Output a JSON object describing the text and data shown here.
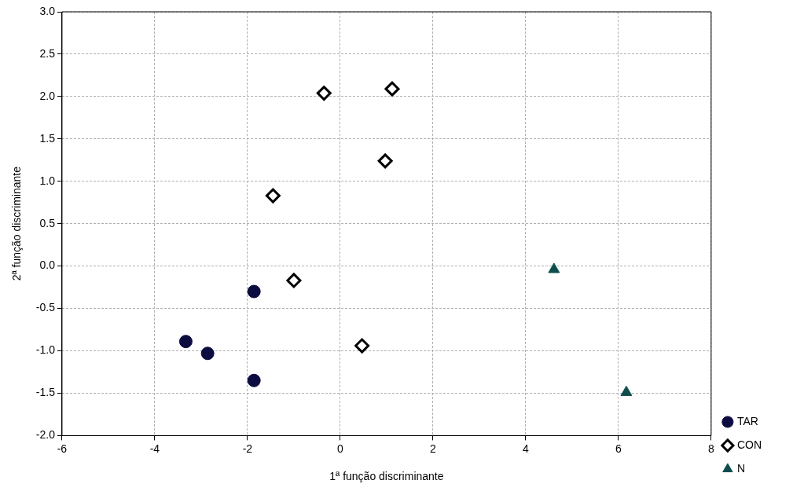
{
  "chart_data": {
    "type": "scatter",
    "xlabel": "1ª função discriminante",
    "ylabel": "2ª função discriminante",
    "xlim": [
      -6,
      8
    ],
    "xticks": [
      -6,
      -4,
      -2,
      0,
      2,
      4,
      6,
      8
    ],
    "ylim": [
      -2,
      3
    ],
    "yticks": [
      {
        "value": -2,
        "label": "-2.0"
      },
      {
        "value": -1.5,
        "label": "-1.5"
      },
      {
        "value": -1,
        "label": "-1.0"
      },
      {
        "value": -0.5,
        "label": "-0.5"
      },
      {
        "value": 0,
        "label": "0.0"
      },
      {
        "value": 0.5,
        "label": "0.5"
      },
      {
        "value": 1,
        "label": "1.0"
      },
      {
        "value": 1.5,
        "label": "1.5"
      },
      {
        "value": 2,
        "label": "2.0"
      },
      {
        "value": 2.5,
        "label": "2.5"
      },
      {
        "value": 3,
        "label": "3.0"
      }
    ],
    "grid": true,
    "legend": "bottom right",
    "line_style": "dashed",
    "series": [
      {
        "name": "TAR",
        "color": "#0c0c40",
        "marker": "circle",
        "x": [
          -3.33,
          -2.86,
          -1.86,
          -1.86
        ],
        "values": [
          -0.89,
          -1.03,
          -0.3,
          -1.35
        ]
      },
      {
        "name": "CON",
        "color": "#000000",
        "marker": "diamond",
        "x": [
          -0.35,
          1.12,
          0.97,
          -1.45,
          -1.0,
          0.47
        ],
        "values": [
          2.04,
          2.09,
          1.24,
          0.83,
          -0.17,
          -0.94
        ]
      },
      {
        "name": "N",
        "color": "#0f4d4d",
        "marker": "triangle",
        "x": [
          4.61,
          6.17
        ],
        "values": [
          -0.04,
          -1.49
        ]
      }
    ]
  }
}
